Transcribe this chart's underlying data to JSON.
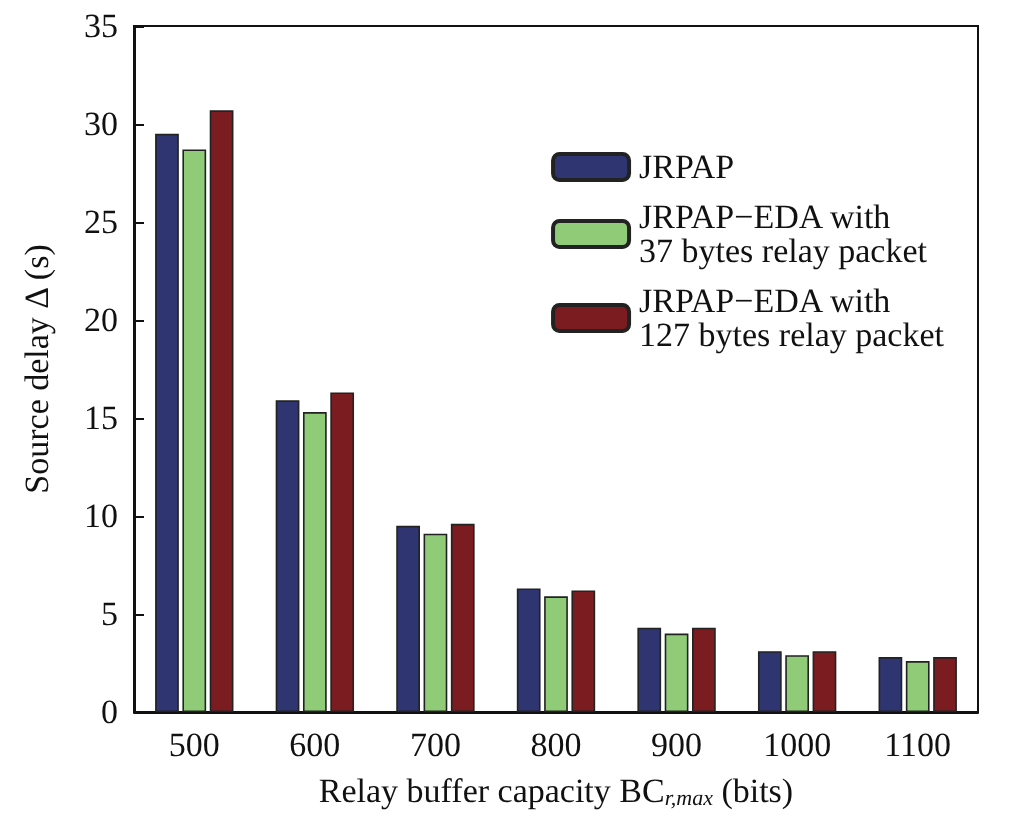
{
  "chart_data": {
    "type": "bar",
    "xlabel": "Relay buffer capacity BC$_{r,max}$ (bits)",
    "ylabel": "Source delay Δ (s)",
    "categories": [
      "500",
      "600",
      "700",
      "800",
      "900",
      "1000",
      "1100"
    ],
    "series": [
      {
        "name": "JRPAP",
        "color": "#2e3570",
        "values": [
          29.5,
          15.9,
          9.5,
          6.3,
          4.3,
          3.1,
          2.8
        ]
      },
      {
        "name": "JRPAP−EDA with\n37 bytes relay packet",
        "color": "#90cc78",
        "values": [
          28.7,
          15.3,
          9.1,
          5.9,
          4.0,
          2.9,
          2.6
        ]
      },
      {
        "name": "JRPAP−EDA with\n127 bytes relay packet",
        "color": "#7a1c20",
        "values": [
          30.7,
          16.3,
          9.6,
          6.2,
          4.3,
          3.1,
          2.8
        ]
      }
    ],
    "ylim": [
      0,
      35
    ],
    "yticks": [
      0,
      5,
      10,
      15,
      20,
      25,
      30,
      35
    ],
    "grid": false,
    "legend": "top right"
  }
}
